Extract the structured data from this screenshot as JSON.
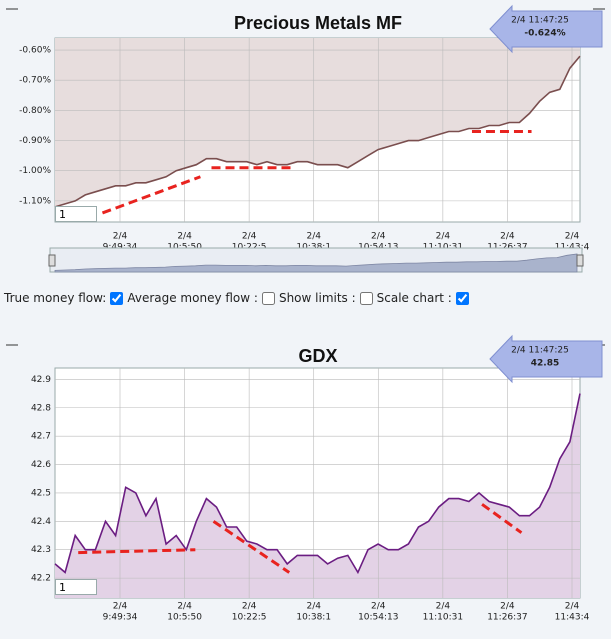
{
  "chart_data": [
    {
      "type": "line",
      "title": "Precious Metals MF",
      "color": "#7a4e4e",
      "fill": "#e7dddd",
      "values": [
        -1.12,
        -1.11,
        -1.1,
        -1.08,
        -1.07,
        -1.06,
        -1.05,
        -1.05,
        -1.04,
        -1.04,
        -1.03,
        -1.02,
        -1.0,
        -0.99,
        -0.98,
        -0.96,
        -0.96,
        -0.97,
        -0.97,
        -0.97,
        -0.98,
        -0.97,
        -0.98,
        -0.98,
        -0.97,
        -0.97,
        -0.98,
        -0.98,
        -0.98,
        -0.99,
        -0.97,
        -0.95,
        -0.93,
        -0.92,
        -0.91,
        -0.9,
        -0.9,
        -0.89,
        -0.88,
        -0.87,
        -0.87,
        -0.86,
        -0.86,
        -0.85,
        -0.85,
        -0.84,
        -0.84,
        -0.81,
        -0.77,
        -0.74,
        -0.73,
        -0.66,
        -0.62
      ],
      "ylim": [
        -1.17,
        -0.56
      ],
      "yticks": [
        {
          "value": -0.6,
          "label": "-0.60%"
        },
        {
          "value": -0.7,
          "label": "-0.70%"
        },
        {
          "value": -0.8,
          "label": "-0.80%"
        },
        {
          "value": -0.9,
          "label": "-0.90%"
        },
        {
          "value": -1.0,
          "label": "-1.00%"
        },
        {
          "value": -1.1,
          "label": "-1.10%"
        }
      ],
      "xtick_labels": [
        {
          "date": "2/4",
          "time": "9:49:34"
        },
        {
          "date": "2/4",
          "time": "10:5:50"
        },
        {
          "date": "2/4",
          "time": "10:22:5"
        },
        {
          "date": "2/4",
          "time": "10:38:1"
        },
        {
          "date": "2/4",
          "time": "10:54:13"
        },
        {
          "date": "2/4",
          "time": "11:10:31"
        },
        {
          "date": "2/4",
          "time": "11:26:37"
        },
        {
          "date": "2/4",
          "time": "11:43:4"
        }
      ],
      "grid": true,
      "trend_lines": [
        {
          "start": [
            4.7,
            -1.14
          ],
          "end": [
            14.4,
            -1.02
          ]
        },
        {
          "start": [
            15.5,
            -0.99
          ],
          "end": [
            23.5,
            -0.99
          ]
        },
        {
          "start": [
            41.3,
            -0.87
          ],
          "end": [
            47.2,
            -0.87
          ]
        }
      ],
      "callout": {
        "time": "2/4 11:47:25",
        "value": "-0.624%"
      },
      "input_value": "1"
    },
    {
      "type": "area",
      "title": "GDX",
      "color": "#6b1d82",
      "fill": "#e3d2e6",
      "values": [
        42.25,
        42.22,
        42.35,
        42.3,
        42.3,
        42.4,
        42.35,
        42.52,
        42.5,
        42.42,
        42.48,
        42.32,
        42.35,
        42.3,
        42.4,
        42.48,
        42.45,
        42.38,
        42.38,
        42.33,
        42.32,
        42.3,
        42.3,
        42.25,
        42.28,
        42.28,
        42.28,
        42.25,
        42.27,
        42.28,
        42.22,
        42.3,
        42.32,
        42.3,
        42.3,
        42.32,
        42.38,
        42.4,
        42.45,
        42.48,
        42.48,
        42.47,
        42.5,
        42.47,
        42.46,
        42.45,
        42.42,
        42.42,
        42.45,
        42.52,
        42.62,
        42.68,
        42.85
      ],
      "ylim": [
        42.13,
        42.94
      ],
      "yticks": [
        42.2,
        42.3,
        42.4,
        42.5,
        42.6,
        42.7,
        42.8,
        42.9
      ],
      "xtick_labels": [
        {
          "date": "2/4",
          "time": "9:49:34"
        },
        {
          "date": "2/4",
          "time": "10:5:50"
        },
        {
          "date": "2/4",
          "time": "10:22:5"
        },
        {
          "date": "2/4",
          "time": "10:38:1"
        },
        {
          "date": "2/4",
          "time": "10:54:13"
        },
        {
          "date": "2/4",
          "time": "11:10:31"
        },
        {
          "date": "2/4",
          "time": "11:26:37"
        },
        {
          "date": "2/4",
          "time": "11:43:4"
        }
      ],
      "grid": true,
      "trend_lines": [
        {
          "start": [
            2.3,
            42.29
          ],
          "end": [
            13.9,
            42.3
          ]
        },
        {
          "start": [
            15.7,
            42.4
          ],
          "end": [
            23.2,
            42.22
          ]
        },
        {
          "start": [
            42.3,
            42.46
          ],
          "end": [
            46.2,
            42.36
          ]
        }
      ],
      "callout": {
        "time": "2/4 11:47:25",
        "value": "42.85"
      },
      "input_value": "1"
    }
  ],
  "controls": [
    {
      "label": "True money flow:",
      "checked": true
    },
    {
      "label": "Average money flow :",
      "checked": false
    },
    {
      "label": "Show limits :",
      "checked": false
    },
    {
      "label": "Scale chart :",
      "checked": true
    }
  ]
}
